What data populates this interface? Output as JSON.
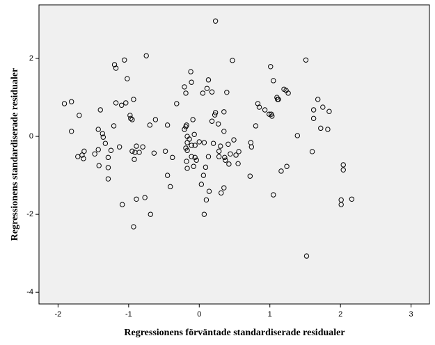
{
  "chart_data": {
    "type": "scatter",
    "x_label": "Regressionens förväntade standardiserade residualer",
    "y_label": "Regressionens standardiserade residualer",
    "xlim": [
      -2.27,
      3.26
    ],
    "ylim": [
      -4.3,
      3.375
    ],
    "xticks": [
      -2,
      -1,
      0,
      1,
      2,
      3
    ],
    "yticks": [
      -4,
      -2,
      0,
      2
    ],
    "background": "#f0f0f0",
    "marker_color": "#000000",
    "grid": false,
    "x": [
      0.23,
      -0.75,
      -1.06,
      1.51,
      0.47,
      -1.2,
      -1.18,
      1.01,
      -0.12,
      -1.02,
      0.13,
      1.05,
      -0.11,
      -0.21,
      0.11,
      1.2,
      1.23,
      0.18,
      0.39,
      -0.19,
      0.05,
      1.26,
      1.1,
      1.11,
      1.12,
      -0.93,
      1.68,
      -1.81,
      -1.91,
      -1.18,
      -1.04,
      -1.1,
      -0.32,
      0.83,
      0.85,
      1.75,
      -1.4,
      0.93,
      1.62,
      1.84,
      0.99,
      0.23,
      0.22,
      0.35,
      1.02,
      1.03,
      -0.98,
      -0.97,
      -0.95,
      -1.7,
      1.62,
      -0.62,
      -0.09,
      -0.7,
      -0.45,
      0.18,
      0.27,
      -0.18,
      -0.19,
      -0.21,
      -1.21,
      0.8,
      1.72,
      1.82,
      -1.81,
      -1.43,
      0.35,
      -1.37,
      -1.36,
      -0.07,
      1.39,
      -0.17,
      -0.14,
      0,
      0.07,
      -0.17,
      0.49,
      0.2,
      -1.33,
      -0.11,
      -0.06,
      0.3,
      0.41,
      0.73,
      0.74,
      -0.89,
      -0.8,
      -1.13,
      -1.43,
      -1.63,
      -1.25,
      -0.95,
      -0.17,
      -0.19,
      0.56,
      1.6,
      -0.48,
      -0.91,
      -0.85,
      -0.64,
      0.28,
      0.44,
      -1.48,
      -1.66,
      -1.72,
      0.52,
      -0.11,
      0.13,
      0.28,
      -0.38,
      0.36,
      -1.29,
      -1.64,
      -0.92,
      -0.06,
      -0.04,
      0.37,
      -0.18,
      0.55,
      0.42,
      2.04,
      1.24,
      -1.42,
      -1.29,
      -0.17,
      -0.08,
      0.09,
      2.04,
      1.16,
      0.06,
      0.72,
      -0.45,
      -1.29,
      0.03,
      -0.41,
      0.35,
      0.14,
      0.31,
      1.05,
      0.1,
      -0.77,
      -0.89,
      2.16,
      2.01,
      -1.09,
      2.01,
      -0.69,
      0.07,
      -0.93,
      1.52
    ],
    "values": [
      2.96,
      2.07,
      1.96,
      1.96,
      1.95,
      1.84,
      1.75,
      1.79,
      1.66,
      1.48,
      1.45,
      1.43,
      1.39,
      1.27,
      1.23,
      1.21,
      1.18,
      1.14,
      1.13,
      1.11,
      1.11,
      1.11,
      1.0,
      0.95,
      0.95,
      0.95,
      0.95,
      0.89,
      0.84,
      0.86,
      0.86,
      0.8,
      0.84,
      0.84,
      0.75,
      0.75,
      0.68,
      0.68,
      0.68,
      0.64,
      0.57,
      0.61,
      0.55,
      0.63,
      0.57,
      0.52,
      0.54,
      0.46,
      0.43,
      0.54,
      0.46,
      0.43,
      0.43,
      0.29,
      0.29,
      0.39,
      0.32,
      0.29,
      0.25,
      0.18,
      0.27,
      0.27,
      0.21,
      0.18,
      0.13,
      0.18,
      0.13,
      0.07,
      -0.02,
      0.05,
      0.02,
      0,
      -0.07,
      -0.14,
      -0.16,
      -0.16,
      -0.09,
      -0.18,
      -0.18,
      -0.23,
      -0.23,
      -0.25,
      -0.2,
      -0.16,
      -0.27,
      -0.25,
      -0.27,
      -0.27,
      -0.34,
      -0.38,
      -0.36,
      -0.38,
      -0.36,
      -0.3,
      -0.39,
      -0.39,
      -0.38,
      -0.41,
      -0.41,
      -0.43,
      -0.38,
      -0.45,
      -0.45,
      -0.48,
      -0.52,
      -0.48,
      -0.52,
      -0.52,
      -0.52,
      -0.54,
      -0.54,
      -0.54,
      -0.57,
      -0.59,
      -0.54,
      -0.61,
      -0.61,
      -0.64,
      -0.7,
      -0.71,
      -0.73,
      -0.77,
      -0.75,
      -0.8,
      -0.82,
      -0.77,
      -0.79,
      -0.86,
      -0.89,
      -1.0,
      -1.02,
      -1.0,
      -1.09,
      -1.23,
      -1.29,
      -1.32,
      -1.41,
      -1.45,
      -1.5,
      -1.63,
      -1.57,
      -1.61,
      -1.61,
      -1.63,
      -1.75,
      -1.75,
      -2.0,
      -2.0,
      -2.32,
      -3.07
    ]
  }
}
